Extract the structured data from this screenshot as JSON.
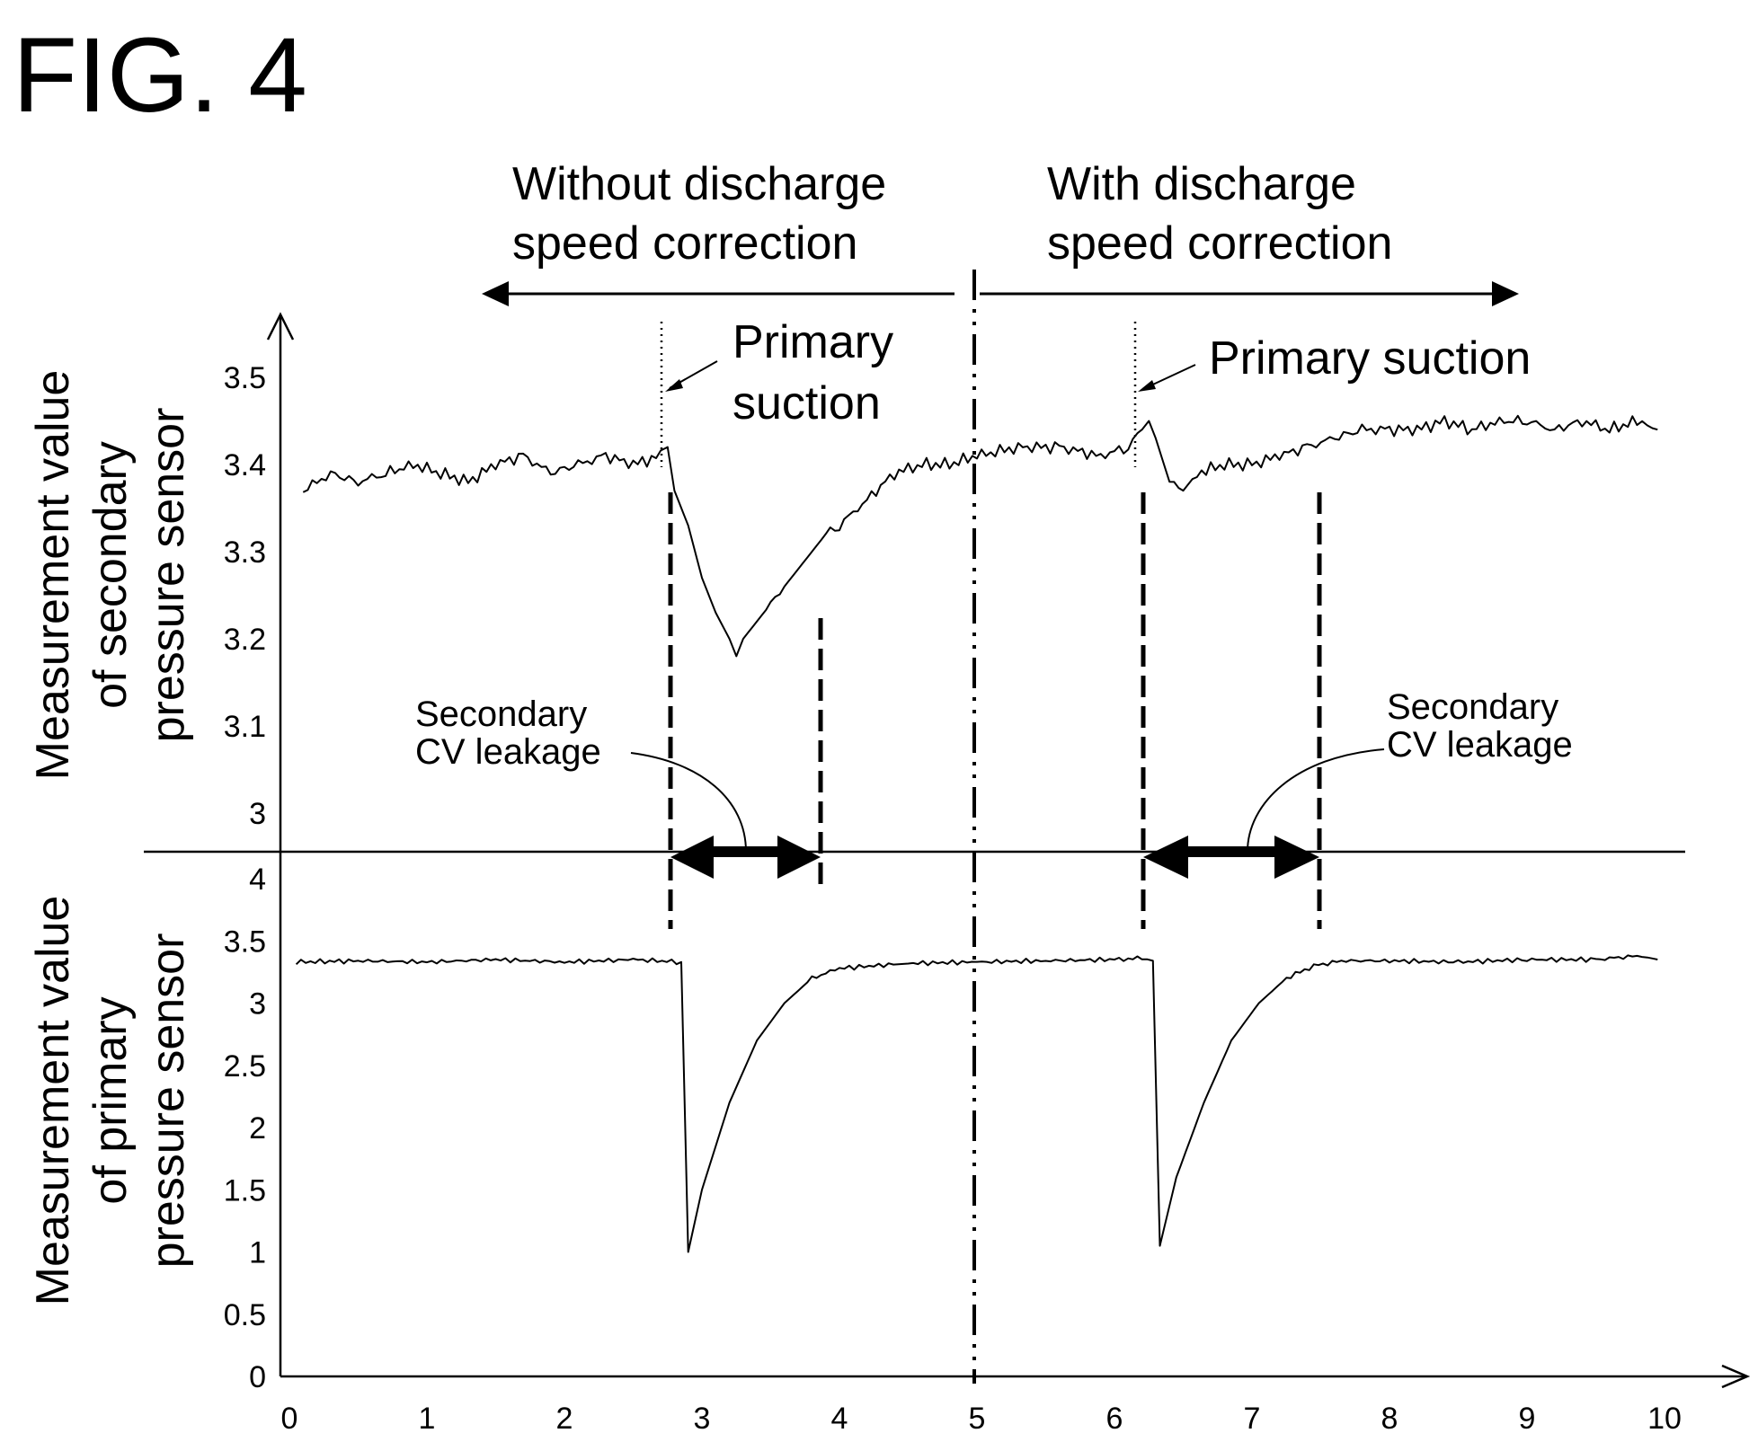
{
  "figure_title": "FIG. 4",
  "chart_data": [
    {
      "type": "line",
      "panel": "top",
      "ylabel": [
        "Measurement value",
        "of secondary",
        "pressure sensor"
      ],
      "yticks": [
        "3.5",
        "3.4",
        "3.3",
        "3.2",
        "3.1",
        "3"
      ],
      "ylim": [
        2.95,
        3.55
      ],
      "xlim": [
        0,
        10
      ],
      "series": [
        {
          "x": [
            0.1,
            0.3,
            0.5,
            0.7,
            0.9,
            1.1,
            1.3,
            1.5,
            1.7,
            1.9,
            2.1,
            2.3,
            2.5,
            2.7,
            2.75,
            2.8,
            2.9,
            3.0,
            3.1,
            3.2,
            3.25,
            3.3,
            3.4,
            3.5,
            3.6,
            3.7,
            3.8,
            3.9,
            4.0,
            4.2,
            4.4,
            4.6,
            4.8,
            5.0,
            5.3,
            5.6,
            5.9,
            6.1,
            6.2,
            6.25,
            6.3,
            6.4,
            6.5,
            6.6,
            6.8,
            7.0,
            7.2,
            7.4,
            7.6,
            7.8,
            8.0,
            8.2,
            8.4,
            8.6,
            8.8,
            9.0,
            9.2,
            9.4,
            9.6,
            9.8,
            9.95
          ],
          "y": [
            3.37,
            3.39,
            3.38,
            3.39,
            3.4,
            3.39,
            3.38,
            3.4,
            3.41,
            3.39,
            3.4,
            3.41,
            3.4,
            3.41,
            3.42,
            3.37,
            3.33,
            3.27,
            3.23,
            3.2,
            3.18,
            3.2,
            3.22,
            3.24,
            3.26,
            3.28,
            3.3,
            3.32,
            3.33,
            3.36,
            3.39,
            3.4,
            3.4,
            3.41,
            3.42,
            3.42,
            3.41,
            3.42,
            3.44,
            3.45,
            3.43,
            3.38,
            3.37,
            3.39,
            3.4,
            3.4,
            3.41,
            3.42,
            3.43,
            3.44,
            3.44,
            3.44,
            3.45,
            3.44,
            3.45,
            3.45,
            3.44,
            3.45,
            3.44,
            3.45,
            3.44
          ]
        }
      ]
    },
    {
      "type": "line",
      "panel": "bottom",
      "ylabel": [
        "Measurement value",
        "of primary",
        "pressure sensor"
      ],
      "yticks": [
        "4",
        "3.5",
        "3",
        "2.5",
        "2",
        "1.5",
        "1",
        "0.5",
        "0"
      ],
      "ylim": [
        0,
        4
      ],
      "xlim": [
        0,
        10
      ],
      "xticks": [
        "0",
        "1",
        "2",
        "3",
        "4",
        "5",
        "6",
        "7",
        "8",
        "9",
        "10"
      ],
      "series": [
        {
          "x": [
            0.05,
            0.5,
            1.0,
            1.5,
            2.0,
            2.5,
            2.85,
            2.9,
            3.0,
            3.2,
            3.4,
            3.6,
            3.8,
            4.0,
            4.5,
            5.0,
            5.5,
            6.0,
            6.2,
            6.28,
            6.33,
            6.45,
            6.65,
            6.85,
            7.05,
            7.25,
            7.45,
            7.65,
            8.0,
            8.5,
            9.0,
            9.5,
            9.8,
            9.95
          ],
          "y": [
            3.33,
            3.34,
            3.33,
            3.35,
            3.33,
            3.35,
            3.33,
            1.0,
            1.5,
            2.2,
            2.7,
            3.0,
            3.2,
            3.28,
            3.32,
            3.33,
            3.34,
            3.35,
            3.36,
            3.34,
            1.05,
            1.6,
            2.2,
            2.7,
            3.0,
            3.2,
            3.3,
            3.34,
            3.34,
            3.33,
            3.35,
            3.35,
            3.38,
            3.35
          ]
        }
      ]
    }
  ],
  "annotations": {
    "left_region": [
      "Without discharge",
      "speed correction"
    ],
    "right_region": [
      "With discharge",
      "speed correction"
    ],
    "primary_suction_left": [
      "Primary",
      "suction"
    ],
    "primary_suction_right": "Primary suction",
    "leakage_left": [
      "Secondary",
      "CV leakage"
    ],
    "leakage_right": [
      "Secondary",
      "CV leakage"
    ]
  }
}
